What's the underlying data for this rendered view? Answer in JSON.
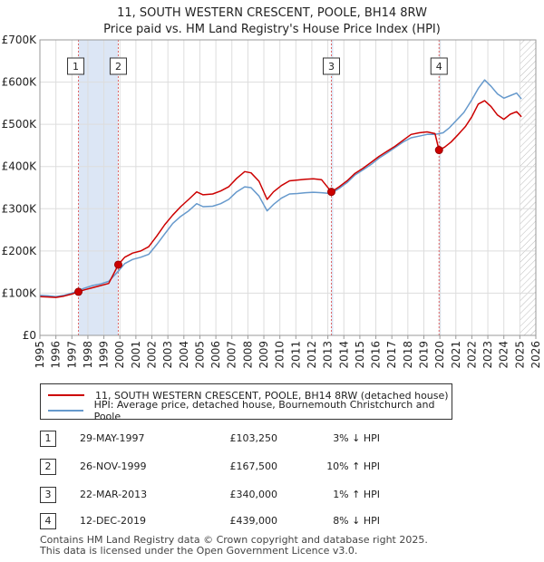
{
  "title_line1": "11, SOUTH WESTERN CRESCENT, POOLE, BH14 8RW",
  "title_line2": "Price paid vs. HM Land Registry's House Price Index (HPI)",
  "legend": {
    "property": "11, SOUTH WESTERN CRESCENT, POOLE, BH14 8RW (detached house)",
    "hpi": "HPI: Average price, detached house, Bournemouth Christchurch and Poole"
  },
  "colors": {
    "property": "#cc0000",
    "hpi": "#6699cc",
    "band": "#dce6f5",
    "grid": "#dddddd"
  },
  "transactions": [
    {
      "num": "1",
      "date": "29-MAY-1997",
      "price": "£103,250",
      "hpi": "3% ↓ HPI"
    },
    {
      "num": "2",
      "date": "26-NOV-1999",
      "price": "£167,500",
      "hpi": "10% ↑ HPI"
    },
    {
      "num": "3",
      "date": "22-MAR-2013",
      "price": "£340,000",
      "hpi": "1% ↑ HPI"
    },
    {
      "num": "4",
      "date": "12-DEC-2019",
      "price": "£439,000",
      "hpi": "8% ↓ HPI"
    }
  ],
  "footer": {
    "line1": "Contains HM Land Registry data © Crown copyright and database right 2025.",
    "line2": "This data is licensed under the Open Government Licence v3.0."
  },
  "chart_data": {
    "type": "line",
    "title": "Price paid vs. HM Land Registry's House Price Index (HPI)",
    "xlim": [
      1995,
      2026
    ],
    "ylim": [
      0,
      700000
    ],
    "x_ticks": [
      "1995",
      "1996",
      "1997",
      "1998",
      "1999",
      "2000",
      "2001",
      "2002",
      "2003",
      "2004",
      "2005",
      "2006",
      "2007",
      "2008",
      "2009",
      "2010",
      "2011",
      "2012",
      "2013",
      "2014",
      "2015",
      "2016",
      "2017",
      "2018",
      "2019",
      "2020",
      "2021",
      "2022",
      "2023",
      "2024",
      "2025",
      "2026"
    ],
    "y_ticks": [
      {
        "value": 0,
        "label": "£0"
      },
      {
        "value": 100000,
        "label": "£100K"
      },
      {
        "value": 200000,
        "label": "£200K"
      },
      {
        "value": 300000,
        "label": "£300K"
      },
      {
        "value": 400000,
        "label": "£400K"
      },
      {
        "value": 500000,
        "label": "£500K"
      },
      {
        "value": 600000,
        "label": "£600K"
      },
      {
        "value": 700000,
        "label": "£700K"
      }
    ],
    "future_start": 2025.0,
    "sale_bands": [
      {
        "start": 1997.41,
        "end": 1999.9
      },
      {
        "start": 2013.22,
        "end": 2013.3
      },
      {
        "start": 2019.95,
        "end": 2020.05
      }
    ],
    "sales": [
      {
        "label": "1",
        "x": 1997.41,
        "y": 103250
      },
      {
        "label": "2",
        "x": 1999.9,
        "y": 167500
      },
      {
        "label": "3",
        "x": 2013.22,
        "y": 340000
      },
      {
        "label": "4",
        "x": 2019.95,
        "y": 439000
      }
    ],
    "series": [
      {
        "name": "HPI: Average price, detached house, Bournemouth Christchurch and Poole",
        "points": [
          [
            1995.0,
            95000
          ],
          [
            1995.5,
            94000
          ],
          [
            1996.0,
            92000
          ],
          [
            1996.5,
            95000
          ],
          [
            1997.0,
            100000
          ],
          [
            1997.4,
            106000
          ],
          [
            1997.8,
            112000
          ],
          [
            1998.3,
            118000
          ],
          [
            1998.8,
            122000
          ],
          [
            1999.3,
            128000
          ],
          [
            1999.9,
            152000
          ],
          [
            2000.3,
            170000
          ],
          [
            2000.8,
            180000
          ],
          [
            2001.3,
            185000
          ],
          [
            2001.8,
            192000
          ],
          [
            2002.3,
            215000
          ],
          [
            2002.8,
            240000
          ],
          [
            2003.3,
            265000
          ],
          [
            2003.8,
            282000
          ],
          [
            2004.3,
            295000
          ],
          [
            2004.8,
            312000
          ],
          [
            2005.2,
            305000
          ],
          [
            2005.8,
            306000
          ],
          [
            2006.3,
            312000
          ],
          [
            2006.8,
            322000
          ],
          [
            2007.3,
            340000
          ],
          [
            2007.8,
            352000
          ],
          [
            2008.2,
            350000
          ],
          [
            2008.7,
            330000
          ],
          [
            2009.2,
            295000
          ],
          [
            2009.6,
            310000
          ],
          [
            2010.1,
            325000
          ],
          [
            2010.6,
            335000
          ],
          [
            2011.1,
            336000
          ],
          [
            2011.6,
            338000
          ],
          [
            2012.1,
            339000
          ],
          [
            2012.6,
            338000
          ],
          [
            2013.2,
            336000
          ],
          [
            2013.7,
            348000
          ],
          [
            2014.2,
            362000
          ],
          [
            2014.7,
            380000
          ],
          [
            2015.2,
            392000
          ],
          [
            2015.7,
            405000
          ],
          [
            2016.2,
            420000
          ],
          [
            2016.7,
            432000
          ],
          [
            2017.2,
            445000
          ],
          [
            2017.7,
            458000
          ],
          [
            2018.2,
            468000
          ],
          [
            2018.7,
            472000
          ],
          [
            2019.2,
            476000
          ],
          [
            2019.7,
            476000
          ],
          [
            2020.2,
            480000
          ],
          [
            2020.6,
            492000
          ],
          [
            2021.0,
            508000
          ],
          [
            2021.5,
            528000
          ],
          [
            2022.0,
            558000
          ],
          [
            2022.4,
            585000
          ],
          [
            2022.8,
            605000
          ],
          [
            2023.2,
            590000
          ],
          [
            2023.6,
            572000
          ],
          [
            2024.0,
            562000
          ],
          [
            2024.4,
            568000
          ],
          [
            2024.8,
            574000
          ],
          [
            2025.1,
            560000
          ]
        ]
      },
      {
        "name": "11, SOUTH WESTERN CRESCENT, POOLE, BH14 8RW (detached house)",
        "points": [
          [
            1995.0,
            92000
          ],
          [
            1995.5,
            91000
          ],
          [
            1996.0,
            90000
          ],
          [
            1996.5,
            93000
          ],
          [
            1997.0,
            98000
          ],
          [
            1997.41,
            103250
          ],
          [
            1997.8,
            108000
          ],
          [
            1998.3,
            113000
          ],
          [
            1998.8,
            118000
          ],
          [
            1999.3,
            123000
          ],
          [
            1999.9,
            167500
          ],
          [
            2000.3,
            185000
          ],
          [
            2000.8,
            195000
          ],
          [
            2001.3,
            200000
          ],
          [
            2001.8,
            210000
          ],
          [
            2002.3,
            235000
          ],
          [
            2002.8,
            262000
          ],
          [
            2003.3,
            285000
          ],
          [
            2003.8,
            305000
          ],
          [
            2004.3,
            322000
          ],
          [
            2004.8,
            340000
          ],
          [
            2005.2,
            333000
          ],
          [
            2005.8,
            335000
          ],
          [
            2006.3,
            342000
          ],
          [
            2006.8,
            352000
          ],
          [
            2007.3,
            372000
          ],
          [
            2007.8,
            388000
          ],
          [
            2008.2,
            385000
          ],
          [
            2008.7,
            365000
          ],
          [
            2009.2,
            322000
          ],
          [
            2009.6,
            340000
          ],
          [
            2010.1,
            355000
          ],
          [
            2010.6,
            366000
          ],
          [
            2011.1,
            368000
          ],
          [
            2011.6,
            370000
          ],
          [
            2012.1,
            371000
          ],
          [
            2012.6,
            369000
          ],
          [
            2013.22,
            340000
          ],
          [
            2013.7,
            352000
          ],
          [
            2014.2,
            366000
          ],
          [
            2014.7,
            384000
          ],
          [
            2015.2,
            396000
          ],
          [
            2015.7,
            410000
          ],
          [
            2016.2,
            424000
          ],
          [
            2016.7,
            436000
          ],
          [
            2017.2,
            448000
          ],
          [
            2017.7,
            462000
          ],
          [
            2018.2,
            476000
          ],
          [
            2018.7,
            480000
          ],
          [
            2019.2,
            482000
          ],
          [
            2019.7,
            478000
          ],
          [
            2019.95,
            439000
          ],
          [
            2020.3,
            446000
          ],
          [
            2020.7,
            458000
          ],
          [
            2021.1,
            474000
          ],
          [
            2021.6,
            495000
          ],
          [
            2022.0,
            518000
          ],
          [
            2022.4,
            548000
          ],
          [
            2022.8,
            556000
          ],
          [
            2023.2,
            542000
          ],
          [
            2023.6,
            522000
          ],
          [
            2024.0,
            512000
          ],
          [
            2024.4,
            524000
          ],
          [
            2024.8,
            530000
          ],
          [
            2025.1,
            518000
          ]
        ]
      }
    ]
  }
}
